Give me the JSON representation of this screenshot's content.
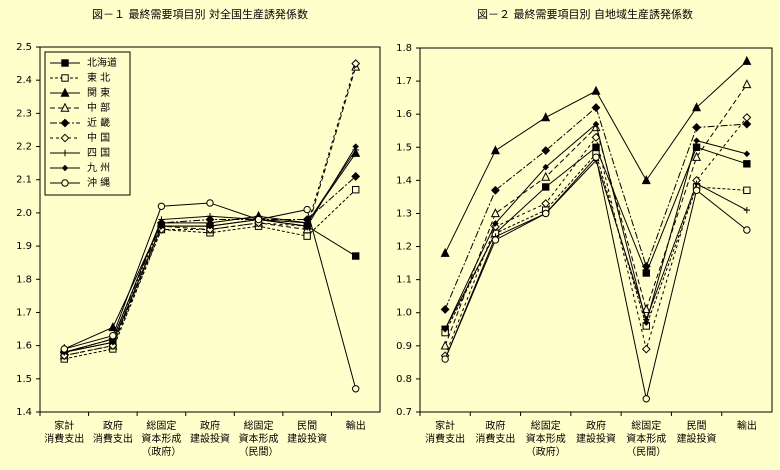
{
  "chart_data": [
    {
      "type": "line",
      "title": "図－１ 最終需要項目別 対全国生産誘発係数",
      "categories": [
        "家計\n消費支出",
        "政府\n消費支出",
        "総固定\n資本形成\n（政府）",
        "政府\n建設投資",
        "総固定\n資本形成\n（民間）",
        "民間\n建設投資",
        "輸出"
      ],
      "ylim": [
        1.4,
        2.5
      ],
      "yticks": [
        1.4,
        1.5,
        1.6,
        1.7,
        1.8,
        1.9,
        {
          "value": 2,
          "label": "2.0"
        },
        2.1,
        2.2,
        2.3,
        2.4,
        2.5
      ],
      "legend": "upper-left",
      "series": [
        {
          "name": "北海道",
          "color": "#000000",
          "marker": "square",
          "dash": "none",
          "values": [
            1.58,
            1.61,
            1.96,
            1.96,
            1.98,
            1.96,
            1.87
          ]
        },
        {
          "name": "東 北",
          "color": "#000000",
          "marker": "square-open",
          "dash": "3,2",
          "values": [
            1.56,
            1.59,
            1.95,
            1.94,
            1.96,
            1.93,
            2.07
          ]
        },
        {
          "name": "関 東",
          "color": "#000000",
          "marker": "triangle",
          "dash": "none",
          "values": [
            1.59,
            1.655,
            1.97,
            1.97,
            1.99,
            1.97,
            2.18
          ]
        },
        {
          "name": "中 部",
          "color": "#000000",
          "marker": "triangle-open",
          "dash": "5,3",
          "values": [
            1.57,
            1.6,
            1.96,
            1.95,
            1.97,
            1.95,
            2.44
          ]
        },
        {
          "name": "近 畿",
          "color": "#000000",
          "marker": "diamond",
          "dash": "7,2,2,2",
          "values": [
            1.58,
            1.62,
            1.97,
            1.98,
            1.98,
            1.98,
            2.11
          ]
        },
        {
          "name": "中 国",
          "color": "#000000",
          "marker": "diamond-open",
          "dash": "3,3",
          "values": [
            1.57,
            1.6,
            1.95,
            1.95,
            1.97,
            1.96,
            2.45
          ]
        },
        {
          "name": "四 国",
          "color": "#000000",
          "marker": "plus",
          "dash": "none",
          "values": [
            1.58,
            1.62,
            1.98,
            1.99,
            1.98,
            1.97,
            2.19
          ]
        },
        {
          "name": "九 州",
          "color": "#000000",
          "marker": "dot",
          "dash": "none",
          "values": [
            1.58,
            1.61,
            1.96,
            1.96,
            1.98,
            1.96,
            2.2
          ]
        },
        {
          "name": "沖 縄",
          "color": "#000000",
          "marker": "circle-open",
          "dash": "none",
          "values": [
            1.59,
            1.63,
            2.02,
            2.03,
            1.98,
            2.01,
            1.47
          ]
        }
      ]
    },
    {
      "type": "line",
      "title": "図－２ 最終需要項目別 自地域生産誘発係数",
      "categories": [
        "家計\n消費支出",
        "政府\n消費支出",
        "総固定\n資本形成\n（政府）",
        "政府\n建設投資",
        "総固定\n資本形成\n（民間）",
        "民間\n建設投資",
        "輸出"
      ],
      "ylim": [
        0.7,
        1.8
      ],
      "yticks": [
        0.7,
        0.8,
        0.9,
        {
          "value": 1,
          "label": "1.0"
        },
        1.1,
        1.2,
        1.3,
        1.4,
        1.5,
        1.6,
        1.7,
        1.8
      ],
      "series": [
        {
          "color": "#000000",
          "marker": "square",
          "dash": "none",
          "values": [
            0.95,
            1.24,
            1.38,
            1.5,
            1.12,
            1.5,
            1.45
          ]
        },
        {
          "color": "#000000",
          "marker": "square-open",
          "dash": "3,2",
          "values": [
            0.94,
            1.24,
            1.31,
            1.48,
            0.96,
            1.38,
            1.37
          ]
        },
        {
          "color": "#000000",
          "marker": "triangle",
          "dash": "none",
          "values": [
            1.18,
            1.49,
            1.59,
            1.67,
            1.4,
            1.62,
            1.76
          ]
        },
        {
          "color": "#000000",
          "marker": "triangle-open",
          "dash": "5,3",
          "values": [
            0.9,
            1.3,
            1.41,
            1.56,
            1.01,
            1.47,
            1.69
          ]
        },
        {
          "color": "#000000",
          "marker": "diamond",
          "dash": "7,2,2,2",
          "values": [
            1.01,
            1.37,
            1.49,
            1.62,
            1.14,
            1.56,
            1.57
          ]
        },
        {
          "color": "#000000",
          "marker": "diamond-open",
          "dash": "3,3",
          "values": [
            0.87,
            1.26,
            1.33,
            1.53,
            0.89,
            1.4,
            1.59
          ]
        },
        {
          "color": "#000000",
          "marker": "plus",
          "dash": "none",
          "values": [
            0.86,
            1.23,
            1.3,
            1.46,
            0.98,
            1.39,
            1.31
          ]
        },
        {
          "color": "#000000",
          "marker": "dot",
          "dash": "none",
          "values": [
            0.95,
            1.27,
            1.44,
            1.57,
            0.97,
            1.52,
            1.48
          ]
        },
        {
          "color": "#000000",
          "marker": "circle-open",
          "dash": "none",
          "values": [
            0.86,
            1.22,
            1.3,
            1.47,
            0.74,
            1.37,
            1.25
          ]
        }
      ]
    }
  ]
}
